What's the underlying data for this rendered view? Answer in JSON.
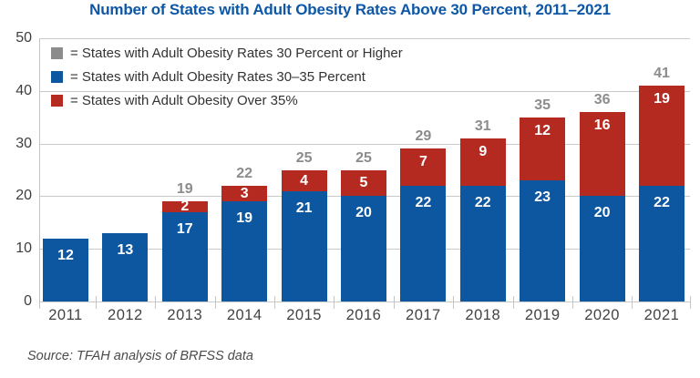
{
  "title": "Number of States with Adult Obesity Rates Above 30 Percent, 2011–2021",
  "source": "Source: TFAH analysis of BRFSS data",
  "colors": {
    "title_blue": "#0d57a6",
    "bar_blue": "#0d56a0",
    "bar_red": "#b42a20",
    "total_gray": "#8c8c8c",
    "gridline": "#c9c9c9",
    "axis_text": "#3e3e3e"
  },
  "legend": {
    "items": [
      {
        "label": "= States with Adult Obesity Rates 30 Percent or Higher",
        "color": "#8c8c8c"
      },
      {
        "label": "= States with Adult Obesity Rates 30–35 Percent",
        "color": "#0d56a0"
      },
      {
        "label": "= States with Adult Obesity Over 35%",
        "color": "#b42a20"
      }
    ]
  },
  "chart_data": {
    "type": "bar",
    "stacked": true,
    "title": "Number of States with Adult Obesity Rates Above 30 Percent, 2011–2021",
    "categories": [
      "2011",
      "2012",
      "2013",
      "2014",
      "2015",
      "2016",
      "2017",
      "2018",
      "2019",
      "2020",
      "2021"
    ],
    "series": [
      {
        "name": "States with Adult Obesity Rates 30–35 Percent",
        "color": "#0d56a0",
        "values": [
          12,
          13,
          17,
          19,
          21,
          20,
          22,
          22,
          23,
          20,
          22
        ]
      },
      {
        "name": "States with Adult Obesity Over 35%",
        "color": "#b42a20",
        "values": [
          0,
          0,
          2,
          3,
          4,
          5,
          7,
          9,
          12,
          16,
          19
        ]
      }
    ],
    "totals_labeled": [
      null,
      null,
      19,
      22,
      25,
      25,
      29,
      31,
      35,
      36,
      41
    ],
    "xlabel": "",
    "ylabel": "",
    "ylim": [
      0,
      50
    ],
    "yticks": [
      0,
      10,
      20,
      30,
      40,
      50
    ],
    "grid": true,
    "legend_position": "top-left"
  }
}
